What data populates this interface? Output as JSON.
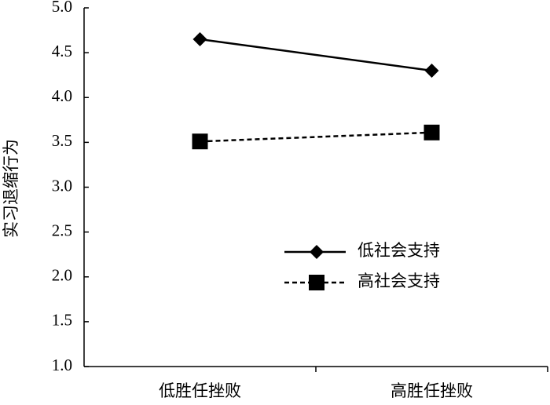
{
  "chart_data": {
    "type": "line",
    "y_label": "实习退缩行为",
    "categories": [
      "低胜任挫败",
      "高胜任挫败"
    ],
    "series": [
      {
        "name": "低社会支持",
        "color": "#000000",
        "marker": "diamond",
        "dashed": false,
        "values": [
          4.65,
          4.3
        ]
      },
      {
        "name": "高社会支持",
        "color": "#000000",
        "marker": "square",
        "dashed": true,
        "values": [
          3.51,
          3.61
        ]
      }
    ],
    "ylim": [
      1,
      5
    ],
    "yticks": [
      {
        "value": 1,
        "label": "1.0"
      },
      {
        "value": 1.5,
        "label": "1.5"
      },
      {
        "value": 2,
        "label": "2.0"
      },
      {
        "value": 2.5,
        "label": "2.5"
      },
      {
        "value": 3,
        "label": "3.0"
      },
      {
        "value": 3.5,
        "label": "3.5"
      },
      {
        "value": 4,
        "label": "4.0"
      },
      {
        "value": 4.5,
        "label": "4.5"
      },
      {
        "value": 5,
        "label": "5.0"
      }
    ],
    "grid": false
  }
}
